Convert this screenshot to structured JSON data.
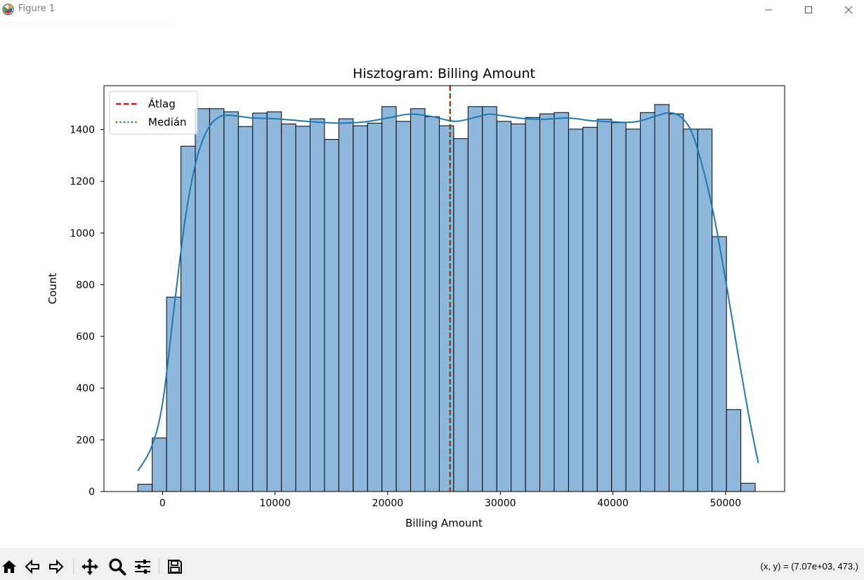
{
  "window": {
    "title": "Figure 1",
    "icons": [
      "app-icon",
      "minimize-icon",
      "maximize-icon",
      "close-icon"
    ]
  },
  "toolbar": {
    "buttons": [
      "home-icon",
      "back-icon",
      "forward-icon",
      "pan-icon",
      "zoom-icon",
      "configure-subplots-icon",
      "save-icon"
    ],
    "coords": "(x, y) = (7.07e+03, 473.)"
  },
  "chart_data": {
    "type": "bar",
    "title": "Hisztogram: Billing Amount",
    "xlabel": "Billing Amount",
    "ylabel": "Count",
    "xlim": [
      -5200,
      55250
    ],
    "ylim": [
      0,
      1570
    ],
    "xticks": [
      0,
      10000,
      20000,
      30000,
      40000,
      50000
    ],
    "yticks": [
      0,
      200,
      400,
      600,
      800,
      1000,
      1200,
      1400
    ],
    "bin_start": -2190,
    "bin_width": 1275,
    "counts": [
      28,
      207,
      752,
      1336,
      1481,
      1481,
      1469,
      1412,
      1464,
      1469,
      1422,
      1413,
      1442,
      1362,
      1442,
      1415,
      1425,
      1489,
      1432,
      1481,
      1450,
      1415,
      1365,
      1489,
      1489,
      1432,
      1422,
      1447,
      1461,
      1466,
      1402,
      1409,
      1440,
      1427,
      1402,
      1466,
      1497,
      1461,
      1402,
      1402,
      986,
      317,
      32
    ],
    "kde": {
      "x": [
        -2190,
        -1000,
        0,
        1000,
        2000,
        3000,
        4000,
        5000,
        6000,
        8000,
        10000,
        12000,
        14000,
        16000,
        18000,
        20000,
        22000,
        24000,
        26000,
        28000,
        29000,
        30000,
        32000,
        34000,
        36000,
        38000,
        40000,
        42000,
        44000,
        45000,
        46000,
        47000,
        48000,
        49000,
        50000,
        51000,
        52000,
        52910
      ],
      "y": [
        80,
        170,
        340,
        700,
        1050,
        1280,
        1400,
        1448,
        1455,
        1445,
        1442,
        1435,
        1428,
        1425,
        1430,
        1445,
        1460,
        1450,
        1432,
        1450,
        1460,
        1455,
        1443,
        1440,
        1445,
        1435,
        1430,
        1430,
        1455,
        1465,
        1450,
        1390,
        1250,
        1060,
        820,
        560,
        310,
        110
      ]
    },
    "mean": 25539,
    "median": 25538,
    "legend": {
      "position": "top-left",
      "entries": [
        {
          "label": "Átlag",
          "color": "#ff0000",
          "style": "dashed"
        },
        {
          "label": "Medián",
          "color": "#008000",
          "style": "dotted"
        }
      ]
    },
    "colors": {
      "bar_fill": "#8db8db",
      "bar_edge": "#000000",
      "kde": "#1f77b4"
    },
    "grid": false
  }
}
